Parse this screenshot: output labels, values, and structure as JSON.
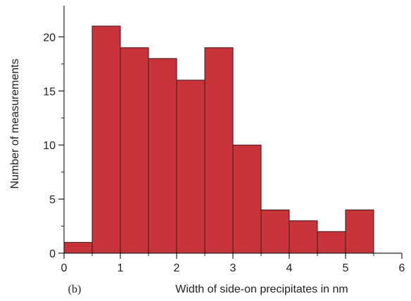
{
  "chart_data": {
    "type": "bar",
    "subtype": "histogram",
    "panel_label": "(b)",
    "xlabel": "Width of side-on precipitates in nm",
    "ylabel": "Number of measurements",
    "bin_width": 0.5,
    "bins": [
      {
        "start": 0.0,
        "end": 0.5,
        "value": 1
      },
      {
        "start": 0.5,
        "end": 1.0,
        "value": 21
      },
      {
        "start": 1.0,
        "end": 1.5,
        "value": 19
      },
      {
        "start": 1.5,
        "end": 2.0,
        "value": 18
      },
      {
        "start": 2.0,
        "end": 2.5,
        "value": 16
      },
      {
        "start": 2.5,
        "end": 3.0,
        "value": 19
      },
      {
        "start": 3.0,
        "end": 3.5,
        "value": 10
      },
      {
        "start": 3.5,
        "end": 4.0,
        "value": 4
      },
      {
        "start": 4.0,
        "end": 4.5,
        "value": 3
      },
      {
        "start": 4.5,
        "end": 5.0,
        "value": 2
      },
      {
        "start": 5.0,
        "end": 5.5,
        "value": 4
      }
    ],
    "xlim": [
      0,
      6
    ],
    "ylim": [
      0,
      22.5
    ],
    "xticks": [
      "0",
      "1",
      "2",
      "3",
      "4",
      "5",
      "6"
    ],
    "yticks": [
      "0",
      "5",
      "10",
      "15",
      "20"
    ],
    "bar_color": "#c8333a",
    "bar_edge_color": "#3a1a1a",
    "axis_color": "#222222",
    "grid": false,
    "legend": "none"
  }
}
